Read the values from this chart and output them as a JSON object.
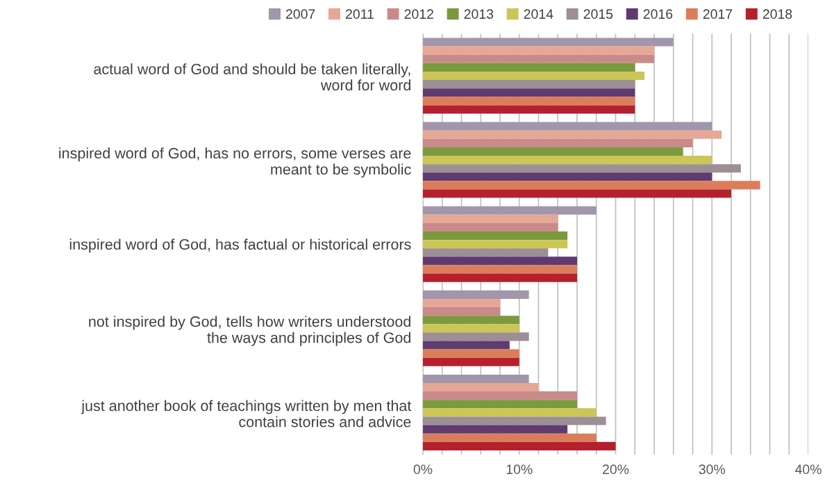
{
  "chart_data": {
    "type": "bar",
    "orientation": "horizontal",
    "categories": [
      "actual word of God and should be taken literally,\nword for word",
      "inspired word of God, has no errors, some verses are\nmeant to be symbolic",
      "inspired word of God, has factual or historical errors",
      "not inspired by God, tells how writers understood\nthe ways and principles of God",
      "just another book of teachings written by men that\ncontain stories and advice"
    ],
    "series": [
      {
        "name": "2007",
        "color": "#a296ab",
        "values": [
          26,
          30,
          18,
          11,
          11
        ]
      },
      {
        "name": "2011",
        "color": "#e6a896",
        "values": [
          24,
          31,
          14,
          8,
          12
        ]
      },
      {
        "name": "2012",
        "color": "#c98b89",
        "values": [
          24,
          28,
          14,
          8,
          16
        ]
      },
      {
        "name": "2013",
        "color": "#7b9a3d",
        "values": [
          22,
          27,
          15,
          10,
          16
        ]
      },
      {
        "name": "2014",
        "color": "#cbc657",
        "values": [
          23,
          30,
          15,
          10,
          18
        ]
      },
      {
        "name": "2015",
        "color": "#9c8f96",
        "values": [
          22,
          33,
          13,
          11,
          19
        ]
      },
      {
        "name": "2016",
        "color": "#5f3b6f",
        "values": [
          22,
          30,
          16,
          9,
          15
        ]
      },
      {
        "name": "2017",
        "color": "#dc7d5a",
        "values": [
          22,
          35,
          16,
          10,
          18
        ]
      },
      {
        "name": "2018",
        "color": "#b5202e",
        "values": [
          22,
          32,
          16,
          10,
          20
        ]
      }
    ],
    "xlim": [
      0,
      40
    ],
    "xticks": [
      {
        "value": 0,
        "label": "0%"
      },
      {
        "value": 2,
        "label": null
      },
      {
        "value": 4,
        "label": null
      },
      {
        "value": 6,
        "label": null
      },
      {
        "value": 8,
        "label": null
      },
      {
        "value": 10,
        "label": "10%"
      },
      {
        "value": 12,
        "label": null
      },
      {
        "value": 14,
        "label": null
      },
      {
        "value": 16,
        "label": null
      },
      {
        "value": 18,
        "label": null
      },
      {
        "value": 20,
        "label": "20%"
      },
      {
        "value": 22,
        "label": null
      },
      {
        "value": 24,
        "label": null
      },
      {
        "value": 26,
        "label": null
      },
      {
        "value": 28,
        "label": null
      },
      {
        "value": 30,
        "label": "30%"
      },
      {
        "value": 32,
        "label": null
      },
      {
        "value": 34,
        "label": null
      },
      {
        "value": 36,
        "label": null
      },
      {
        "value": 38,
        "label": null
      },
      {
        "value": 40,
        "label": "40%"
      }
    ],
    "grid": "x",
    "legend": "top"
  }
}
